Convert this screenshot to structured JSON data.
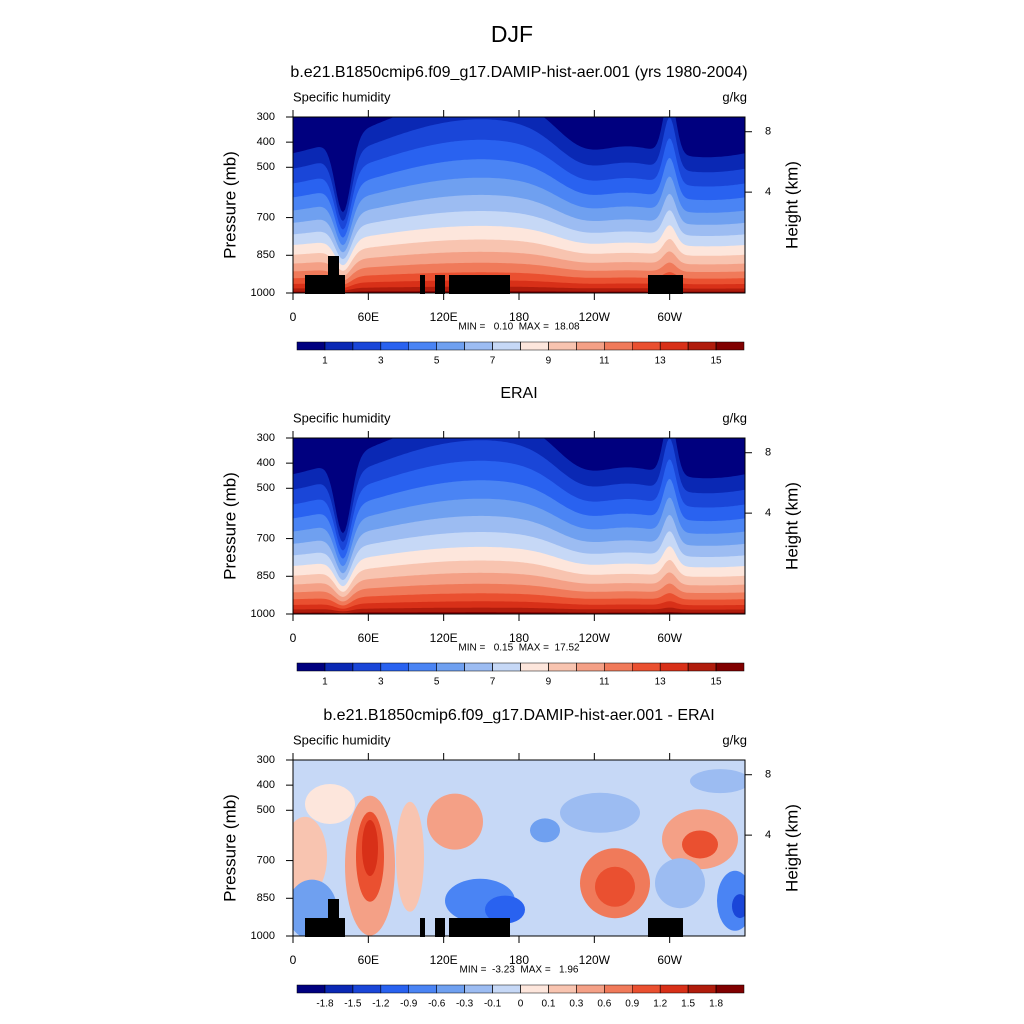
{
  "title": "DJF",
  "chart_data": [
    {
      "type": "contour",
      "title": "b.e21.B1850cmip6.f09_g17.DAMIP-hist-aer.001 (yrs 1980-2004)",
      "left_string": "Specific humidity",
      "right_string": "g/kg",
      "ylabel": "Pressure (mb)",
      "y2label": "Height (km)",
      "xlim": [
        0,
        360
      ],
      "xticks": [
        0,
        {
          "value": 60,
          "label": "60E"
        },
        {
          "value": 120,
          "label": "120E"
        },
        180,
        {
          "value": 240,
          "label": "120W"
        },
        {
          "value": 300,
          "label": "60W"
        }
      ],
      "ylim": [
        1000,
        300
      ],
      "yticks": [
        300,
        400,
        500,
        700,
        850,
        1000
      ],
      "y2ticks": [
        4,
        8
      ],
      "stats": "MIN =   0.10  MAX =  18.08",
      "colorbar": {
        "levels": [
          1,
          2,
          3,
          4,
          5,
          6,
          7,
          8,
          9,
          10,
          11,
          12,
          13,
          14,
          15
        ],
        "ticks": [
          1,
          3,
          5,
          7,
          9,
          11,
          13,
          15
        ],
        "colors": [
          "#00007f",
          "#0a28b4",
          "#1a46d8",
          "#2962f0",
          "#4a84f4",
          "#6fa0f0",
          "#9cbcf2",
          "#c6d8f6",
          "#fde6dc",
          "#f8c4b0",
          "#f4a086",
          "#f07a5a",
          "#ea5030",
          "#d83018",
          "#b01c0c",
          "#800000"
        ]
      }
    },
    {
      "type": "contour",
      "title": "ERAI",
      "left_string": "Specific humidity",
      "right_string": "g/kg",
      "ylabel": "Pressure (mb)",
      "y2label": "Height (km)",
      "xlim": [
        0,
        360
      ],
      "xticks": [
        0,
        {
          "value": 60,
          "label": "60E"
        },
        {
          "value": 120,
          "label": "120E"
        },
        180,
        {
          "value": 240,
          "label": "120W"
        },
        {
          "value": 300,
          "label": "60W"
        }
      ],
      "ylim": [
        1000,
        300
      ],
      "yticks": [
        300,
        400,
        500,
        700,
        850,
        1000
      ],
      "y2ticks": [
        4,
        8
      ],
      "stats": "MIN =   0.15  MAX =  17.52",
      "colorbar": {
        "levels": [
          1,
          2,
          3,
          4,
          5,
          6,
          7,
          8,
          9,
          10,
          11,
          12,
          13,
          14,
          15
        ],
        "ticks": [
          1,
          3,
          5,
          7,
          9,
          11,
          13,
          15
        ],
        "colors": [
          "#00007f",
          "#0a28b4",
          "#1a46d8",
          "#2962f0",
          "#4a84f4",
          "#6fa0f0",
          "#9cbcf2",
          "#c6d8f6",
          "#fde6dc",
          "#f8c4b0",
          "#f4a086",
          "#f07a5a",
          "#ea5030",
          "#d83018",
          "#b01c0c",
          "#800000"
        ]
      }
    },
    {
      "type": "difference",
      "title": "b.e21.B1850cmip6.f09_g17.DAMIP-hist-aer.001 - ERAI",
      "left_string": "Specific humidity",
      "right_string": "g/kg",
      "ylabel": "Pressure (mb)",
      "y2label": "Height (km)",
      "xlim": [
        0,
        360
      ],
      "xticks": [
        0,
        {
          "value": 60,
          "label": "60E"
        },
        {
          "value": 120,
          "label": "120E"
        },
        180,
        {
          "value": 240,
          "label": "120W"
        },
        {
          "value": 300,
          "label": "60W"
        }
      ],
      "ylim": [
        1000,
        300
      ],
      "yticks": [
        300,
        400,
        500,
        700,
        850,
        1000
      ],
      "y2ticks": [
        4,
        8
      ],
      "stats": "MIN =  -3.23  MAX =   1.96",
      "colorbar": {
        "levels": [
          -1.8,
          -1.5,
          -1.2,
          -0.9,
          -0.6,
          -0.3,
          -0.1,
          0,
          0.1,
          0.3,
          0.6,
          0.9,
          1.2,
          1.5,
          1.8
        ],
        "ticks": [
          -1.8,
          -1.5,
          -1.2,
          -0.9,
          -0.6,
          -0.3,
          -0.1,
          0,
          0.1,
          0.3,
          0.6,
          0.9,
          1.2,
          1.5,
          1.8
        ],
        "colors": [
          "#00007f",
          "#0a28b4",
          "#1a46d8",
          "#2962f0",
          "#4a84f4",
          "#6fa0f0",
          "#9cbcf2",
          "#c6d8f6",
          "#fde6dc",
          "#f8c4b0",
          "#f4a086",
          "#f07a5a",
          "#ea5030",
          "#d83018",
          "#b01c0c",
          "#800000"
        ]
      }
    }
  ]
}
